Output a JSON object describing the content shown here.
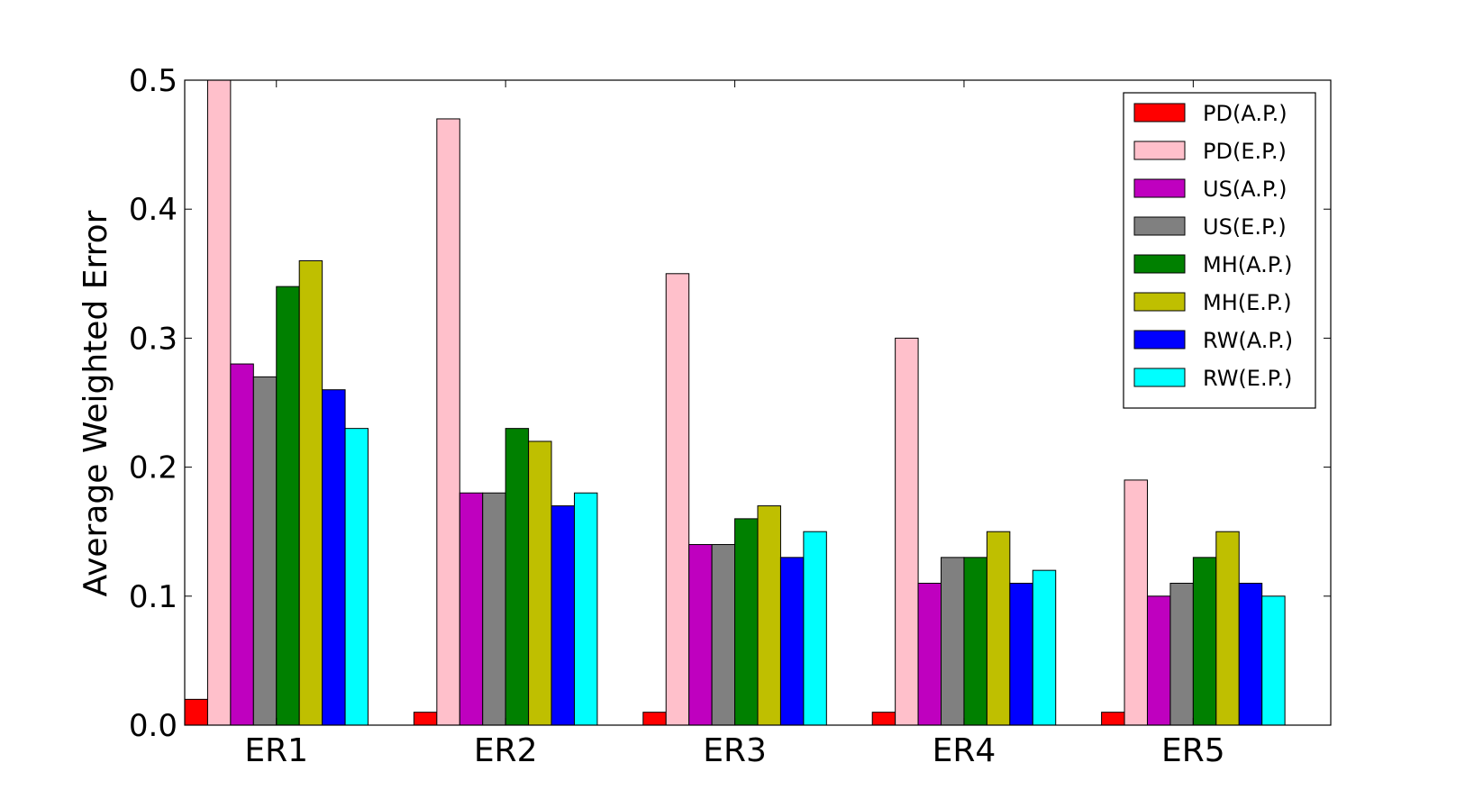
{
  "chart_data": {
    "type": "bar",
    "title": "",
    "xlabel": "",
    "ylabel": "Average Weighted Error",
    "ylim": [
      0,
      0.5
    ],
    "yticks": [
      "0.0",
      "0.1",
      "0.2",
      "0.3",
      "0.4",
      "0.5"
    ],
    "grid": false,
    "legend_position": "top-right",
    "categories": [
      "ER1",
      "ER2",
      "ER3",
      "ER4",
      "ER5"
    ],
    "series": [
      {
        "name": "PD(A.P.)",
        "color": "#ff0000",
        "values": [
          0.02,
          0.01,
          0.01,
          0.01,
          0.01
        ]
      },
      {
        "name": "PD(E.P.)",
        "color": "#ffc0cb",
        "values": [
          0.5,
          0.47,
          0.35,
          0.3,
          0.19
        ]
      },
      {
        "name": "US(A.P.)",
        "color": "#bf00bf",
        "values": [
          0.28,
          0.18,
          0.14,
          0.11,
          0.1
        ]
      },
      {
        "name": "US(E.P.)",
        "color": "#808080",
        "values": [
          0.27,
          0.18,
          0.14,
          0.13,
          0.11
        ]
      },
      {
        "name": "MH(A.P.)",
        "color": "#008000",
        "values": [
          0.34,
          0.23,
          0.16,
          0.13,
          0.13
        ]
      },
      {
        "name": "MH(E.P.)",
        "color": "#bfbf00",
        "values": [
          0.36,
          0.22,
          0.17,
          0.15,
          0.15
        ]
      },
      {
        "name": "RW(A.P.)",
        "color": "#0000ff",
        "values": [
          0.26,
          0.17,
          0.13,
          0.11,
          0.11
        ]
      },
      {
        "name": "RW(E.P.)",
        "color": "#00ffff",
        "values": [
          0.23,
          0.18,
          0.15,
          0.12,
          0.1
        ]
      }
    ]
  }
}
